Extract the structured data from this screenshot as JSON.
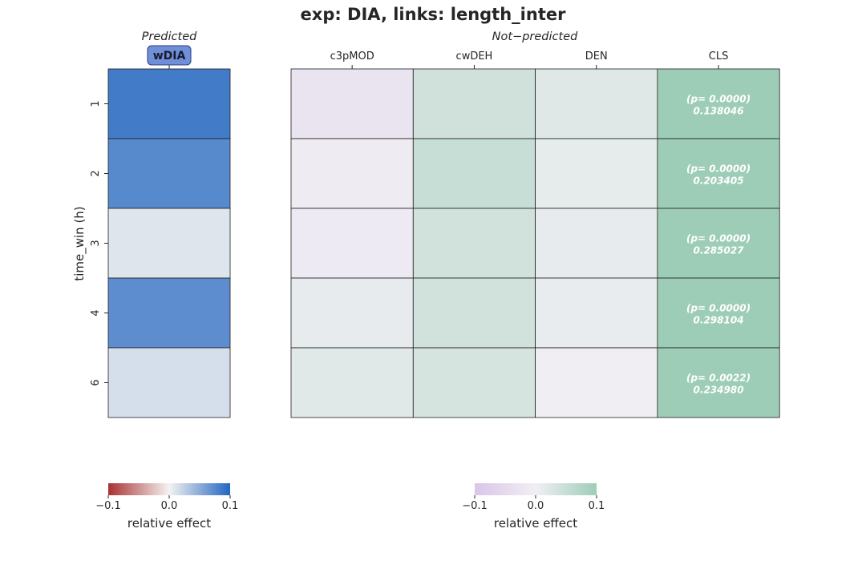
{
  "title": "exp: DIA, links: length_inter",
  "ylabel": "time_win (h)",
  "chart_data": [
    {
      "type": "heatmap",
      "panel_title": "Predicted",
      "columns": [
        "wDIA"
      ],
      "rows": [
        "1",
        "2",
        "3",
        "4",
        "6"
      ],
      "values": [
        [
          0.085
        ],
        [
          0.075
        ],
        [
          0.01
        ],
        [
          0.072
        ],
        [
          0.015
        ]
      ],
      "colormap": [
        "#a83232",
        "#f4f3f2",
        "#2266c0"
      ],
      "vmin": -0.1,
      "vmax": 0.1,
      "colorbar_ticks": [
        "−0.1",
        "0.0",
        "0.1"
      ],
      "colorbar_label": "relative effect",
      "grid_color": "#1f1f1f"
    },
    {
      "type": "heatmap",
      "panel_title": "Not−predicted",
      "columns": [
        "c3pMOD",
        "cwDEH",
        "DEN",
        "CLS"
      ],
      "rows": [
        "1",
        "2",
        "3",
        "4",
        "6"
      ],
      "values": [
        [
          -0.03,
          0.04,
          0.022,
          0.1
        ],
        [
          -0.01,
          0.05,
          0.013,
          0.1
        ],
        [
          -0.012,
          0.038,
          0.012,
          0.1
        ],
        [
          0.012,
          0.038,
          0.01,
          0.1
        ],
        [
          0.02,
          0.032,
          -0.005,
          0.1
        ]
      ],
      "annotations": [
        [
          null,
          null,
          null,
          {
            "p": "(p= 0.0000)",
            "v": "0.138046"
          }
        ],
        [
          null,
          null,
          null,
          {
            "p": "(p= 0.0000)",
            "v": "0.203405"
          }
        ],
        [
          null,
          null,
          null,
          {
            "p": "(p= 0.0000)",
            "v": "0.285027"
          }
        ],
        [
          null,
          null,
          null,
          {
            "p": "(p= 0.0000)",
            "v": "0.298104"
          }
        ],
        [
          null,
          null,
          null,
          {
            "p": "(p= 0.0022)",
            "v": "0.234980"
          }
        ]
      ],
      "colormap": [
        "#d8c6e8",
        "#f1eff4",
        "#9ecdb7"
      ],
      "vmin": -0.1,
      "vmax": 0.1,
      "colorbar_ticks": [
        "−0.1",
        "0.0",
        "0.1"
      ],
      "colorbar_label": "relative effect",
      "grid_color": "#1f1f1f"
    }
  ],
  "predicted_tag": {
    "fill": "#6f8fd8",
    "stroke": "#2b3f7a"
  }
}
